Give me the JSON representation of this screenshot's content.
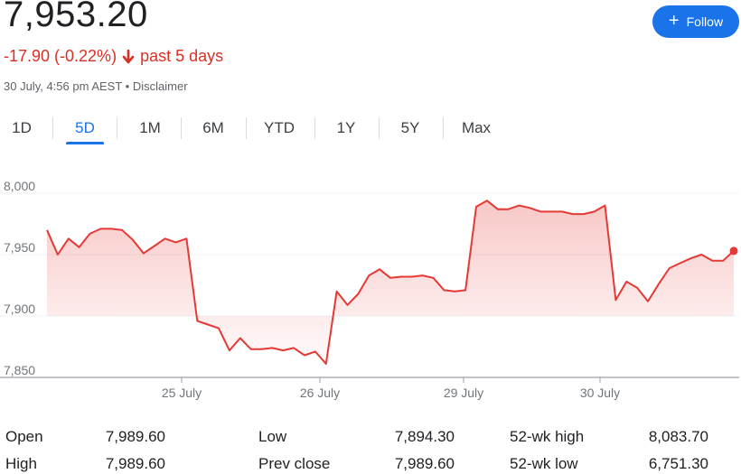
{
  "quote": {
    "price": "7,953.20",
    "change": "-17.90 (-0.22%)",
    "period": "past 5 days",
    "timestamp": "30 July, 4:56 pm AEST",
    "separator": "•",
    "disclaimer": "Disclaimer",
    "down_color": "#d93025"
  },
  "follow_button": {
    "label": "Follow",
    "icon": "plus-icon",
    "color": "#1a73e8"
  },
  "tabs": [
    {
      "label": "1D",
      "active": false
    },
    {
      "label": "5D",
      "active": true
    },
    {
      "label": "1M",
      "active": false
    },
    {
      "label": "6M",
      "active": false
    },
    {
      "label": "YTD",
      "active": false
    },
    {
      "label": "1Y",
      "active": false
    },
    {
      "label": "5Y",
      "active": false
    },
    {
      "label": "Max",
      "active": false
    }
  ],
  "chart_data": {
    "type": "line",
    "y_ticks": [
      "8,000",
      "7,950",
      "7,900",
      "7,850"
    ],
    "ylim": [
      7850,
      8000
    ],
    "x_ticks": [
      "25 July",
      "26 July",
      "29 July",
      "30 July"
    ],
    "line_color": "#e53935",
    "series": [
      {
        "values": [
          7970,
          7950,
          7963,
          7956,
          7967,
          7971,
          7971,
          7970,
          7962,
          7951,
          7957,
          7963,
          7960,
          7963,
          7896,
          7893,
          7890,
          7872,
          7882,
          7873,
          7873,
          7874,
          7872,
          7874,
          7868,
          7871,
          7861,
          7920,
          7909,
          7918,
          7933,
          7938,
          7931,
          7932,
          7932,
          7933,
          7931,
          7921,
          7920,
          7921,
          7989,
          7994,
          7987,
          7987,
          7990,
          7988,
          7985,
          7985,
          7985,
          7983,
          7983,
          7985,
          7990,
          7913,
          7928,
          7923,
          7912,
          7926,
          7939,
          7943,
          7947,
          7950,
          7945,
          7945,
          7953
        ]
      }
    ]
  },
  "stats": [
    {
      "label": "Open",
      "value": "7,989.60"
    },
    {
      "label": "High",
      "value": "7,989.60"
    },
    {
      "label": "Low",
      "value": "7,894.30"
    },
    {
      "label": "Prev close",
      "value": "7,989.60"
    },
    {
      "label": "52-wk high",
      "value": "8,083.70"
    },
    {
      "label": "52-wk low",
      "value": "6,751.30"
    }
  ]
}
